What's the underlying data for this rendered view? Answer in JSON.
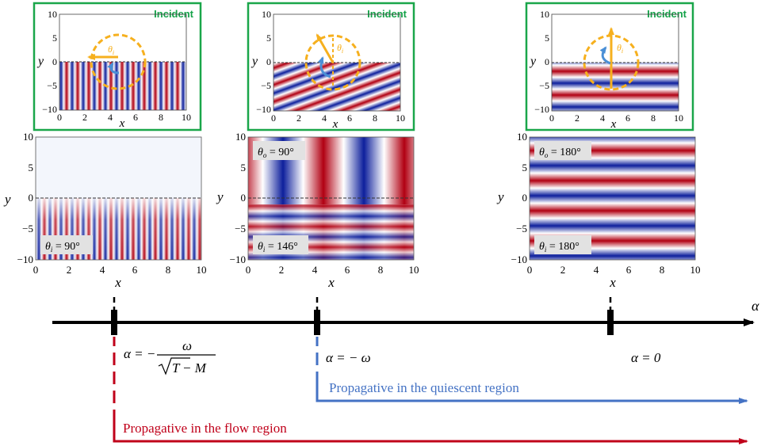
{
  "colors": {
    "red": "#b10012",
    "blue": "#0d1f9c",
    "frame_green": "#1aa64a",
    "incident_green": "#16a34a",
    "orange": "#f6b01e",
    "arrow_blue": "#4a8fd6",
    "axis_black": "#000000",
    "flow_red": "#c0001a",
    "quiescent_blue": "#4472c4",
    "label_bg": "#e2e2e2"
  },
  "axis_text": {
    "x": "x",
    "y": "y",
    "xticks": [
      "0",
      "2",
      "4",
      "6",
      "8",
      "10"
    ],
    "yticks_top": [
      "10",
      "5",
      "0",
      "−5",
      "−10"
    ]
  },
  "insets": [
    {
      "title": "Incident",
      "theta": "θ",
      "theta_sub": "i"
    },
    {
      "title": "Incident",
      "theta": "θ",
      "theta_sub": "i"
    },
    {
      "title": "Incident",
      "theta": "θ",
      "theta_sub": "i"
    }
  ],
  "panels": [
    {
      "theta_i": "θ",
      "theta_i_sub": "i",
      "theta_i_val": " = 90°",
      "theta_o": "",
      "theta_o_sub": "",
      "theta_o_val": ""
    },
    {
      "theta_i": "θ",
      "theta_i_sub": "i",
      "theta_i_val": " = 146°",
      "theta_o": "θ",
      "theta_o_sub": "o",
      "theta_o_val": " = 90°"
    },
    {
      "theta_i": "θ",
      "theta_i_sub": "i",
      "theta_i_val": " = 180°",
      "theta_o": "θ",
      "theta_o_sub": "o",
      "theta_o_val": " = 180°"
    }
  ],
  "alpha_axis": {
    "label": "α",
    "mark1_alpha": "α = −",
    "mark1_num": "ω",
    "mark1_den_T": "T",
    "mark1_den_rest": " − M",
    "mark2": "α = − ω",
    "mark3": "α = 0"
  },
  "regions": {
    "quiescent": "Propagative in the quiescent region",
    "flow": "Propagative in the flow region"
  }
}
